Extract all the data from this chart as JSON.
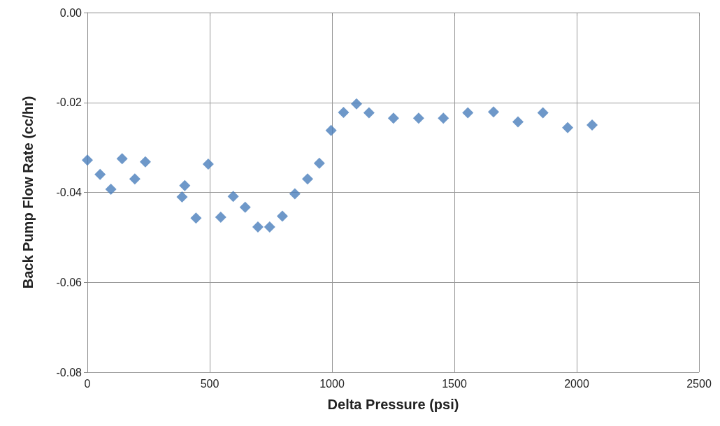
{
  "chart_data": {
    "type": "scatter",
    "xlabel": "Delta Pressure (psi)",
    "ylabel": "Back Pump Flow Rate (cc/hr)",
    "x": [
      0,
      52,
      96,
      142,
      194,
      237,
      387,
      398,
      444,
      494,
      545,
      596,
      645,
      697,
      745,
      797,
      848,
      900,
      948,
      996,
      1047,
      1100,
      1151,
      1251,
      1354,
      1455,
      1555,
      1660,
      1760,
      1862,
      1963,
      2063
    ],
    "series": [
      {
        "color": "#4a7ebb",
        "values": [
          -0.0328,
          -0.036,
          -0.0393,
          -0.0325,
          -0.037,
          -0.0332,
          -0.041,
          -0.0385,
          -0.0457,
          -0.0337,
          -0.0455,
          -0.0409,
          -0.0433,
          -0.0477,
          -0.0477,
          -0.0453,
          -0.0403,
          -0.037,
          -0.0335,
          -0.0262,
          -0.0222,
          -0.0203,
          -0.0223,
          -0.0235,
          -0.0235,
          -0.0235,
          -0.0223,
          -0.0221,
          -0.0243,
          -0.0223,
          -0.0256,
          -0.025
        ]
      }
    ],
    "xlim": [
      0,
      2500
    ],
    "xticks": [
      0,
      500,
      1000,
      1500,
      2000,
      2500
    ],
    "ylim": [
      -0.08,
      0
    ],
    "yticks": [
      {
        "value": -0.08,
        "label": "-0.08"
      },
      {
        "value": -0.06,
        "label": "-0.06"
      },
      {
        "value": -0.04,
        "label": "-0.04"
      },
      {
        "value": -0.02,
        "label": "-0.02"
      },
      {
        "value": 0,
        "label": "0.00"
      }
    ],
    "grid": true,
    "marker": "diamond"
  }
}
